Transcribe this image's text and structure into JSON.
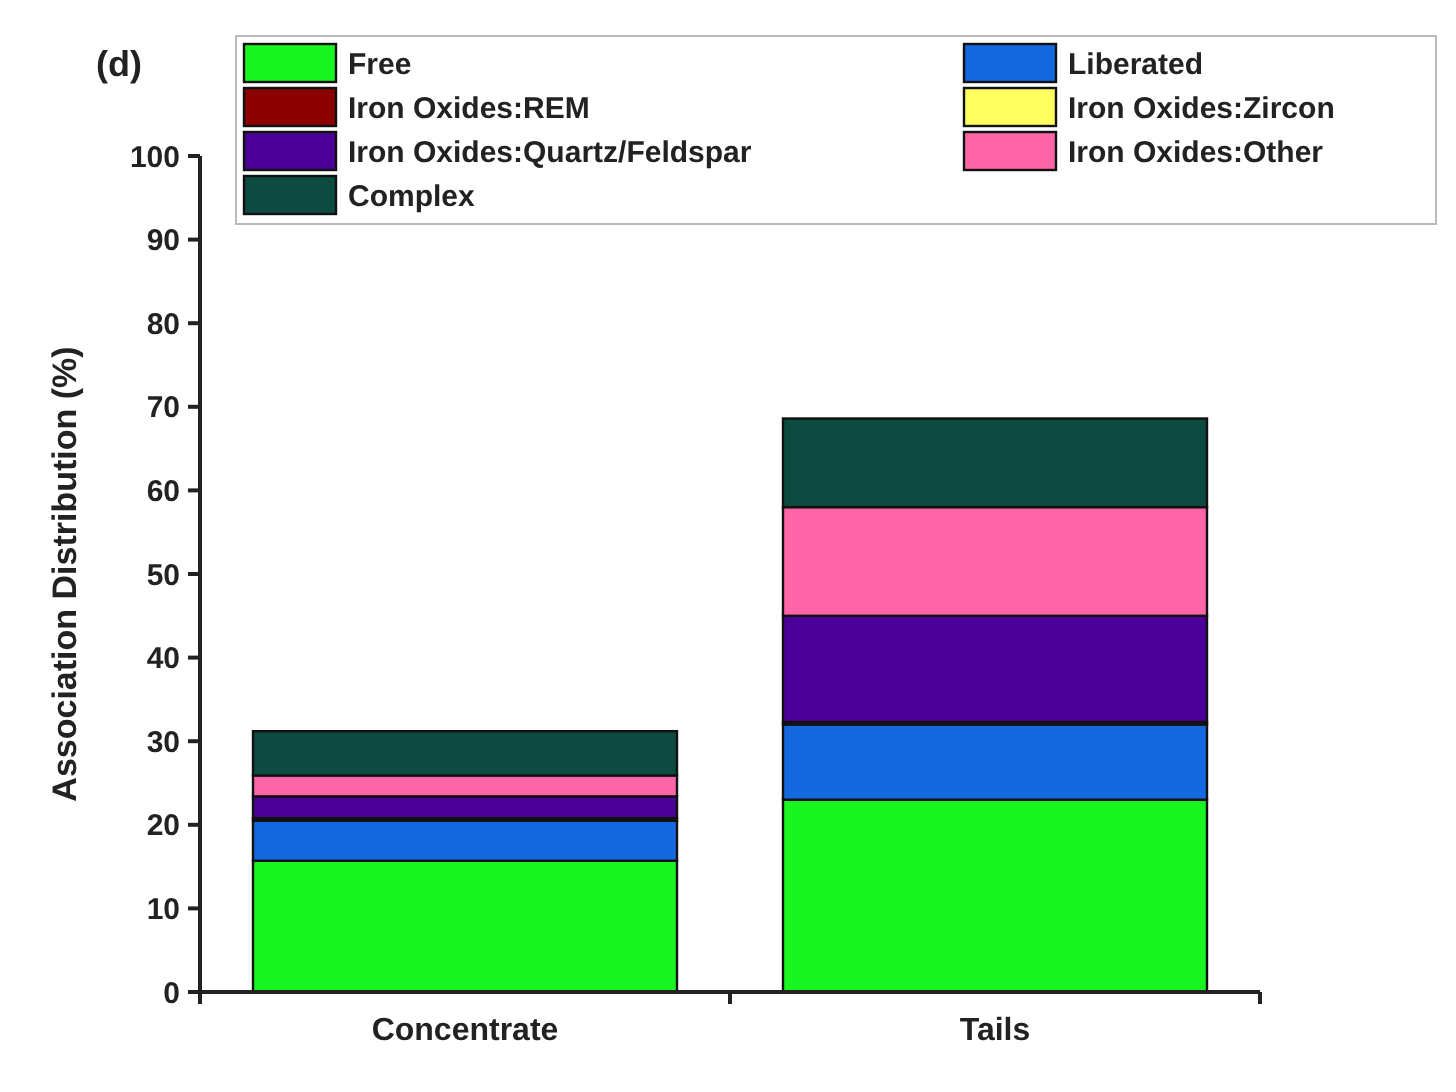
{
  "chart_data": {
    "type": "bar",
    "title": "(d)",
    "ylabel": "Association Distribution (%)",
    "categories": [
      "Concentrate",
      "Tails"
    ],
    "stacked": true,
    "ylim": [
      0,
      100
    ],
    "yticks": [
      0,
      10,
      20,
      30,
      40,
      50,
      60,
      70,
      80,
      90,
      100
    ],
    "legend": "top",
    "series": [
      {
        "name": "Free",
        "color": "#18f520",
        "values": [
          15.7,
          23.0
        ]
      },
      {
        "name": "Liberated",
        "color": "#1469e0",
        "values": [
          4.8,
          9.0
        ]
      },
      {
        "name": "Iron Oxides:REM",
        "color": "#8b0000",
        "values": [
          0.3,
          0.3
        ]
      },
      {
        "name": "Iron Oxides:Zircon",
        "color": "#ffff60",
        "values": [
          0,
          0
        ]
      },
      {
        "name": "Iron Oxides:Quartz/Feldspar",
        "color": "#4b0099",
        "values": [
          2.6,
          12.7
        ]
      },
      {
        "name": "Iron Oxides:Other",
        "color": "#ff66a8",
        "values": [
          2.5,
          13.0
        ]
      },
      {
        "name": "Complex",
        "color": "#0d4a40",
        "values": [
          5.3,
          10.6
        ]
      }
    ]
  }
}
